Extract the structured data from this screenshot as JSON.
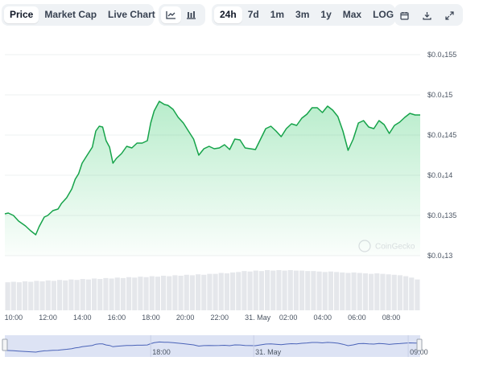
{
  "toolbar": {
    "metric_tabs": [
      "Price",
      "Market Cap",
      "Live Chart"
    ],
    "active_metric": "Price",
    "view_icons": [
      "line-chart-icon",
      "candlestick-chart-icon"
    ],
    "ranges": [
      "24h",
      "7d",
      "1m",
      "3m",
      "1y",
      "Max",
      "LOG"
    ],
    "active_range": "24h",
    "actions": [
      "calendar-icon",
      "download-icon",
      "expand-icon"
    ]
  },
  "watermark": "CoinGecko",
  "colors": {
    "line": "#16a34a",
    "fill": "#22c55e",
    "volume": "#e5e7eb",
    "grid": "#eef0f2",
    "navigator_line": "#4a63b8"
  },
  "chart_data": {
    "type": "area",
    "title": "",
    "ylabel": "",
    "xlabel": "",
    "y_unit": "USD",
    "y_tick_labels": [
      "$0.0₄155",
      "$0.0₄15",
      "$0.0₄145",
      "$0.0₄14",
      "$0.0₄135",
      "$0.0₄13"
    ],
    "y_ticks": [
      1.55e-05,
      1.5e-05,
      1.45e-05,
      1.4e-05,
      1.35e-05,
      1.3e-05
    ],
    "ylim": [
      1.3e-05,
      1.55e-05
    ],
    "x_tick_labels": [
      "10:00",
      "12:00",
      "14:00",
      "16:00",
      "18:00",
      "20:00",
      "22:00",
      "31. May",
      "02:00",
      "04:00",
      "06:00",
      "08:00"
    ],
    "x_ticks": [
      0,
      2,
      4,
      6,
      8,
      10,
      12,
      14,
      16,
      18,
      20,
      22
    ],
    "x_unit": "hours since 10:00, 30 May",
    "xlim": [
      -0.5,
      23.7
    ],
    "series": [
      {
        "x": [
          -0.5,
          -0.3,
          0,
          0.3,
          0.7,
          1.0,
          1.3,
          1.5,
          1.8,
          2.0,
          2.3,
          2.6,
          2.8,
          3.1,
          3.4,
          3.6,
          3.8,
          4.0,
          4.3,
          4.6,
          4.8,
          5.0,
          5.2,
          5.4,
          5.6,
          5.8,
          6.0,
          6.3,
          6.6,
          6.9,
          7.2,
          7.5,
          7.8,
          8.0,
          8.2,
          8.5,
          8.8,
          9.0,
          9.3,
          9.6,
          9.9,
          10.2,
          10.5,
          10.8,
          11.1,
          11.4,
          11.7,
          12.0,
          12.3,
          12.6,
          12.9,
          13.2,
          13.5,
          13.8,
          14.1,
          14.4,
          14.7,
          15.0,
          15.3,
          15.6,
          15.9,
          16.2,
          16.5,
          16.8,
          17.1,
          17.4,
          17.7,
          18.0,
          18.3,
          18.6,
          18.9,
          19.2,
          19.5,
          19.8,
          20.1,
          20.4,
          20.7,
          21.0,
          21.3,
          21.6,
          21.9,
          22.2,
          22.5,
          22.8,
          23.1,
          23.4,
          23.7
        ],
        "y": [
          1.352e-05,
          1.353e-05,
          1.35e-05,
          1.343e-05,
          1.337e-05,
          1.331e-05,
          1.326e-05,
          1.336e-05,
          1.348e-05,
          1.35e-05,
          1.356e-05,
          1.358e-05,
          1.365e-05,
          1.372e-05,
          1.383e-05,
          1.395e-05,
          1.402e-05,
          1.415e-05,
          1.425e-05,
          1.435e-05,
          1.455e-05,
          1.461e-05,
          1.46e-05,
          1.443e-05,
          1.435e-05,
          1.415e-05,
          1.421e-05,
          1.427e-05,
          1.436e-05,
          1.434e-05,
          1.44e-05,
          1.44e-05,
          1.443e-05,
          1.465e-05,
          1.48e-05,
          1.492e-05,
          1.488e-05,
          1.487e-05,
          1.482e-05,
          1.472e-05,
          1.465e-05,
          1.455e-05,
          1.445e-05,
          1.425e-05,
          1.433e-05,
          1.436e-05,
          1.433e-05,
          1.434e-05,
          1.438e-05,
          1.432e-05,
          1.445e-05,
          1.444e-05,
          1.434e-05,
          1.433e-05,
          1.432e-05,
          1.445e-05,
          1.458e-05,
          1.461e-05,
          1.455e-05,
          1.448e-05,
          1.458e-05,
          1.464e-05,
          1.462e-05,
          1.471e-05,
          1.476e-05,
          1.484e-05,
          1.484e-05,
          1.478e-05,
          1.486e-05,
          1.481e-05,
          1.473e-05,
          1.455e-05,
          1.431e-05,
          1.445e-05,
          1.465e-05,
          1.468e-05,
          1.46e-05,
          1.458e-05,
          1.468e-05,
          1.463e-05,
          1.452e-05,
          1.462e-05,
          1.466e-05,
          1.472e-05,
          1.477e-05,
          1.475e-05,
          1.475e-05
        ]
      }
    ],
    "volume": [
      0.6,
      0.61,
      0.6,
      0.62,
      0.61,
      0.63,
      0.62,
      0.64,
      0.63,
      0.65,
      0.64,
      0.66,
      0.65,
      0.67,
      0.66,
      0.68,
      0.67,
      0.69,
      0.68,
      0.7,
      0.69,
      0.71,
      0.7,
      0.72,
      0.71,
      0.73,
      0.72,
      0.74,
      0.73,
      0.75,
      0.74,
      0.76,
      0.75,
      0.77,
      0.76,
      0.78,
      0.78,
      0.8,
      0.79,
      0.81,
      0.82,
      0.84,
      0.83,
      0.85,
      0.84,
      0.86,
      0.85,
      0.86,
      0.85,
      0.86,
      0.85,
      0.85,
      0.84,
      0.84,
      0.83,
      0.82,
      0.83,
      0.82,
      0.81,
      0.8,
      0.81,
      0.8,
      0.79,
      0.78,
      0.79,
      0.78,
      0.77,
      0.76,
      0.75,
      0.73,
      0.7,
      0.66
    ],
    "navigator": {
      "x_tick_labels": [
        "18:00",
        "31. May",
        "09:00"
      ],
      "x_ticks": [
        8,
        14,
        23
      ]
    },
    "legend": "none",
    "grid": true
  }
}
